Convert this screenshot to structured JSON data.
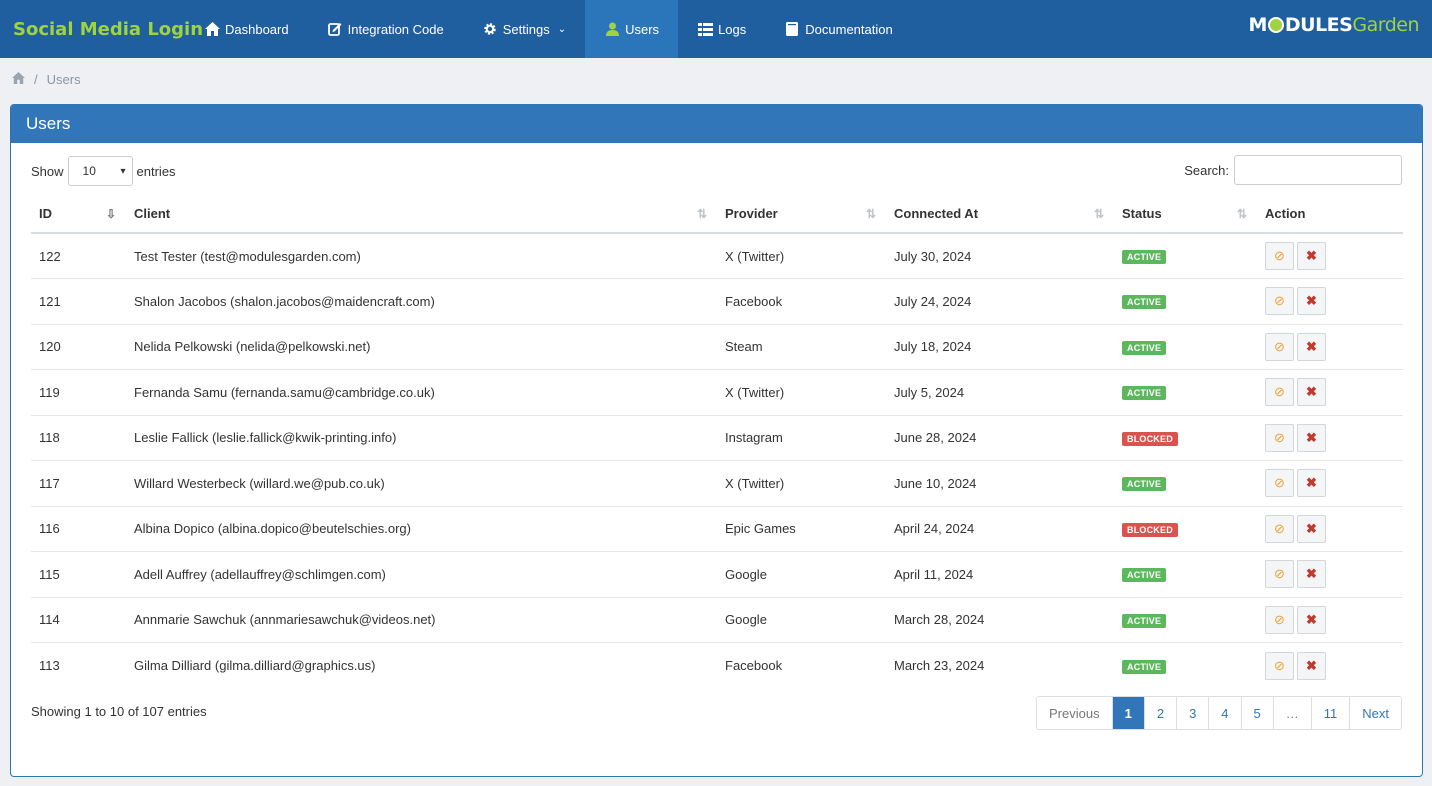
{
  "app": {
    "title": "Social Media Login"
  },
  "nav": [
    {
      "label": "Dashboard",
      "icon": "home-icon"
    },
    {
      "label": "Integration Code",
      "icon": "edit-icon"
    },
    {
      "label": "Settings",
      "icon": "gear-icon"
    },
    {
      "label": "Users",
      "icon": "user-icon"
    },
    {
      "label": "Logs",
      "icon": "list-icon"
    },
    {
      "label": "Documentation",
      "icon": "book-icon"
    }
  ],
  "logo": {
    "part1": "M",
    "part2": "DULES",
    "part3": "Garden"
  },
  "breadcrumb": {
    "current": "Users"
  },
  "panel": {
    "title": "Users"
  },
  "length": {
    "show_label": "Show",
    "value": "10",
    "entries_label": "entries"
  },
  "search": {
    "label": "Search:",
    "value": ""
  },
  "table": {
    "columns": [
      "ID",
      "Client",
      "Provider",
      "Connected At",
      "Status",
      "Action"
    ],
    "rows": [
      {
        "id": "122",
        "client": "Test Tester (test@modulesgarden.com)",
        "provider": "X (Twitter)",
        "connected": "July 30, 2024",
        "status": "ACTIVE"
      },
      {
        "id": "121",
        "client": "Shalon Jacobos (shalon.jacobos@maidencraft.com)",
        "provider": "Facebook",
        "connected": "July 24, 2024",
        "status": "ACTIVE"
      },
      {
        "id": "120",
        "client": "Nelida Pelkowski (nelida@pelkowski.net)",
        "provider": "Steam",
        "connected": "July 18, 2024",
        "status": "ACTIVE"
      },
      {
        "id": "119",
        "client": "Fernanda Samu (fernanda.samu@cambridge.co.uk)",
        "provider": "X (Twitter)",
        "connected": "July 5, 2024",
        "status": "ACTIVE"
      },
      {
        "id": "118",
        "client": "Leslie Fallick (leslie.fallick@kwik-printing.info)",
        "provider": "Instagram",
        "connected": "June 28, 2024",
        "status": "BLOCKED"
      },
      {
        "id": "117",
        "client": "Willard Westerbeck (willard.we@pub.co.uk)",
        "provider": "X (Twitter)",
        "connected": "June 10, 2024",
        "status": "ACTIVE"
      },
      {
        "id": "116",
        "client": "Albina Dopico (albina.dopico@beutelschies.org)",
        "provider": "Epic Games",
        "connected": "April 24, 2024",
        "status": "BLOCKED"
      },
      {
        "id": "115",
        "client": "Adell Auffrey (adellauffrey@schlimgen.com)",
        "provider": "Google",
        "connected": "April 11, 2024",
        "status": "ACTIVE"
      },
      {
        "id": "114",
        "client": "Annmarie Sawchuk (annmariesawchuk@videos.net)",
        "provider": "Google",
        "connected": "March 28, 2024",
        "status": "ACTIVE"
      },
      {
        "id": "113",
        "client": "Gilma Dilliard (gilma.dilliard@graphics.us)",
        "provider": "Facebook",
        "connected": "March 23, 2024",
        "status": "ACTIVE"
      }
    ]
  },
  "footer": {
    "info": "Showing 1 to 10 of 107 entries"
  },
  "pagination": [
    "Previous",
    "1",
    "2",
    "3",
    "4",
    "5",
    "…",
    "11",
    "Next"
  ],
  "colors": {
    "nav_bg": "#1f5fa0",
    "accent": "#3176b8",
    "brand": "#9fd33f",
    "active": "#5cb85c",
    "blocked": "#d9534f"
  }
}
